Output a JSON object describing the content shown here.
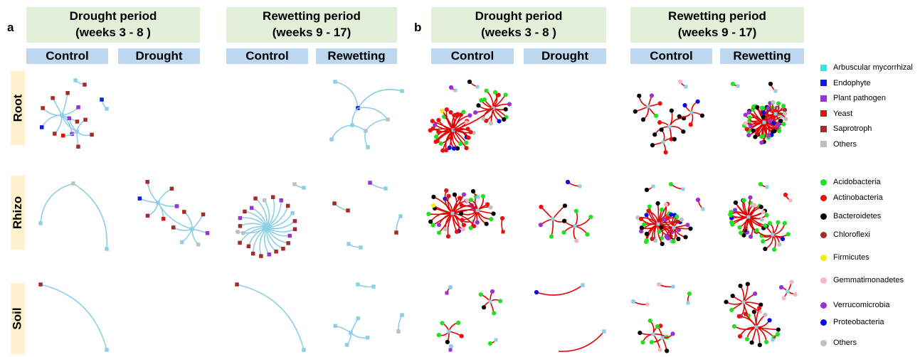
{
  "panel_a_label": "a",
  "panel_b_label": "b",
  "periods": {
    "drought": {
      "title": "Drought period",
      "weeks": "(weeks 3 - 8 )"
    },
    "rewetting": {
      "title": "Rewetting period",
      "weeks": "(weeks 9 - 17)"
    }
  },
  "conditions": {
    "control": "Control",
    "drought": "Drought",
    "rewetting": "Rewetting"
  },
  "rows": {
    "root": "Root",
    "rhizo": "Rhizo",
    "soil": "Soil"
  },
  "legend_fungi": [
    {
      "label": "Arbuscular mycorrhizal",
      "color": "#33e6e6"
    },
    {
      "label": "Endophyte",
      "color": "#0a1fd6"
    },
    {
      "label": "Plant pathogen",
      "color": "#9b30d9"
    },
    {
      "label": "Yeast",
      "color": "#e60f0f"
    },
    {
      "label": "Saprotroph",
      "color": "#a52a2a"
    },
    {
      "label": "Others",
      "color": "#c0c0c0"
    }
  ],
  "legend_bacteria": [
    {
      "label": "Acidobacteria",
      "color": "#22e022"
    },
    {
      "label": "Actinobacteria",
      "color": "#f00c0c"
    },
    {
      "label": "Bacteroidetes",
      "color": "#000000"
    },
    {
      "label": "Chloroflexi",
      "color": "#a52a2a"
    },
    {
      "label": "Firmicutes",
      "color": "#f5f000"
    },
    {
      "label": "Gemmatimonadetes",
      "color": "#f7b6c2"
    },
    {
      "label": "Verrucomicrobia",
      "color": "#9b30d9"
    },
    {
      "label": "Proteobacteria",
      "color": "#0a0ae6"
    },
    {
      "label": "Others",
      "color": "#c0c0c0"
    }
  ],
  "edge_colors": {
    "fungi": "#8ccfe6",
    "bacteria": "#e00000",
    "hub": "#8ccfe6"
  }
}
